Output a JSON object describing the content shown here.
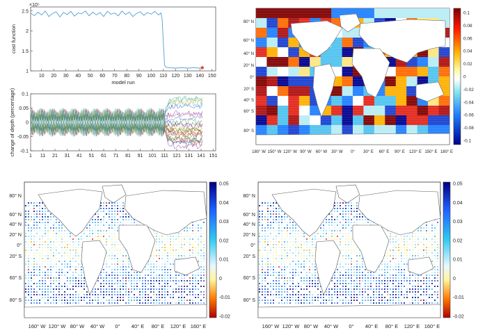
{
  "chart_data": [
    {
      "type": "line",
      "panel": "cost-function",
      "xlabel": "model run",
      "ylabel": "cost function",
      "exponent_label": "×10⁵",
      "xticks": [
        "10",
        "20",
        "30",
        "40",
        "50",
        "60",
        "70",
        "80",
        "90",
        "100",
        "110",
        "120",
        "130",
        "140",
        "150"
      ],
      "yticks": [
        "1",
        "1.5",
        "2",
        "2.5"
      ],
      "xlim": [
        1,
        153
      ],
      "ylim": [
        1,
        2.6
      ],
      "series": [
        {
          "values_desc": "noisy plateau then drop",
          "x": [
            1,
            4,
            7,
            10,
            13,
            16,
            19,
            22,
            25,
            28,
            31,
            34,
            37,
            40,
            43,
            46,
            49,
            52,
            55,
            58,
            61,
            64,
            67,
            70,
            73,
            76,
            79,
            82,
            85,
            88,
            91,
            94,
            97,
            100,
            103,
            106,
            108,
            109,
            110,
            111,
            112,
            115,
            120,
            125,
            130,
            135,
            140,
            142
          ],
          "y": [
            2.45,
            2.38,
            2.47,
            2.4,
            2.5,
            2.36,
            2.44,
            2.48,
            2.35,
            2.46,
            2.41,
            2.49,
            2.37,
            2.45,
            2.43,
            2.5,
            2.38,
            2.47,
            2.4,
            2.46,
            2.36,
            2.49,
            2.42,
            2.45,
            2.38,
            2.5,
            2.41,
            2.47,
            2.36,
            2.44,
            2.48,
            2.39,
            2.46,
            2.42,
            2.49,
            2.4,
            2.45,
            2.3,
            1.7,
            1.15,
            1.09,
            1.08,
            1.07,
            1.08,
            1.07,
            1.08,
            1.07,
            1.08
          ]
        }
      ],
      "marker": {
        "x": 142,
        "y": 1.08,
        "color": "#e8443a"
      }
    },
    {
      "type": "line",
      "panel": "depth-change",
      "ylabel": "change of depth (percentage)",
      "xticks": [
        "1",
        "11",
        "21",
        "31",
        "41",
        "51",
        "61",
        "71",
        "81",
        "91",
        "101",
        "111",
        "121",
        "131",
        "141",
        "151"
      ],
      "yticks": [
        "-0.1",
        "-0.05",
        "0",
        "0.05",
        "0.1"
      ],
      "xlim": [
        1,
        153
      ],
      "ylim": [
        -0.1,
        0.1
      ],
      "note": "many series oscillating within ±0.05 until run ~111, then diverging"
    },
    {
      "type": "heatmap",
      "panel": "depth-regions-map",
      "colorbar_ticks": [
        "0.1",
        "0.08",
        "0.06",
        "0.04",
        "0.02",
        "0",
        "-0.02",
        "-0.04",
        "-0.06",
        "-0.08",
        "-0.1"
      ],
      "lat_labels": [
        "80° N",
        "60° N",
        "40° N",
        "20° N",
        "0°",
        "20° S",
        "40° S",
        "60° S",
        "80° S"
      ],
      "lon_labels": [
        "180° W",
        "150° W",
        "120° W",
        "90° W",
        "60° W",
        "30° W",
        "0°",
        "30° E",
        "60° E",
        "90° E",
        "120° E",
        "150° E",
        "180° E"
      ],
      "clim": [
        -0.1,
        0.1
      ]
    },
    {
      "type": "scatter",
      "panel": "sensitivity-map-left",
      "colorbar_ticks": [
        "0.05",
        "0.04",
        "0.03",
        "0.02",
        "0.01",
        "0",
        "-0.01",
        "-0.02"
      ],
      "lat_labels": [
        "80° N",
        "60° N",
        "40° N",
        "20° N",
        "0°",
        "20° S",
        "60° S",
        "80° S"
      ],
      "lon_labels": [
        "160° W",
        "120° W",
        "80° W",
        "40° W",
        "0°",
        "40° E",
        "80° E",
        "120° E",
        "160° E"
      ],
      "clim": [
        -0.02,
        0.05
      ]
    },
    {
      "type": "scatter",
      "panel": "sensitivity-map-right",
      "colorbar_ticks": [
        "0.05",
        "0.04",
        "0.03",
        "0.02",
        "0.01",
        "0",
        "-0.01",
        "-0.02"
      ],
      "lat_labels": [
        "80° N",
        "60° N",
        "40° N",
        "20° N",
        "0°",
        "20° S",
        "60° S",
        "80° S"
      ],
      "lon_labels": [
        "160° W",
        "120° W",
        "80° W",
        "40° W",
        "0°",
        "40° E",
        "80° E",
        "120° E",
        "160° E"
      ],
      "clim": [
        -0.02,
        0.05
      ]
    }
  ],
  "colors": {
    "line": "#4f9fd2",
    "land": "#ffffff",
    "coast": "#555555"
  }
}
